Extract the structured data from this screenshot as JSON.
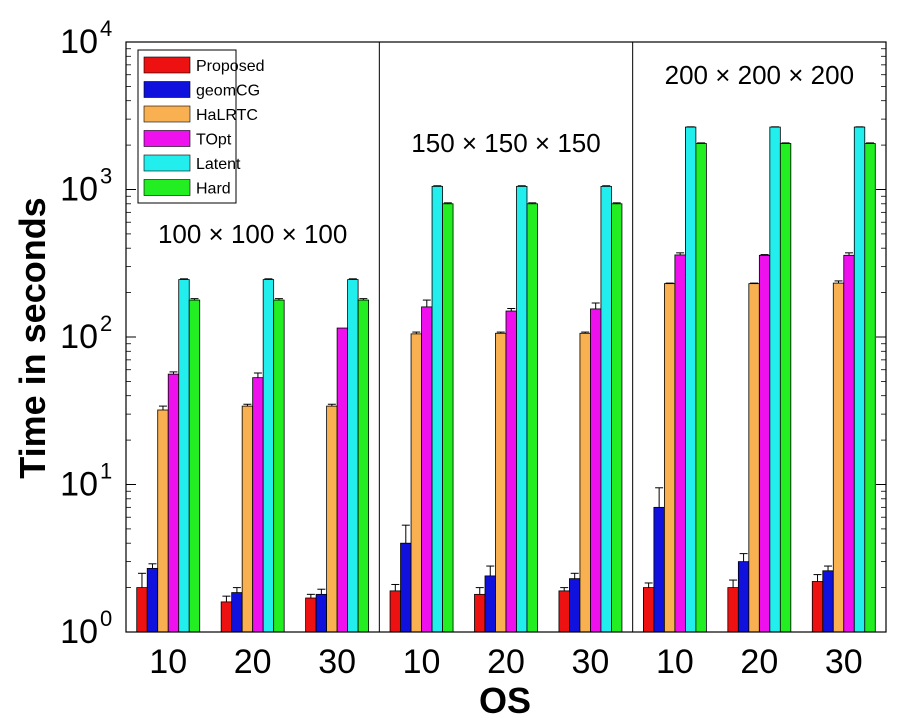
{
  "chart_data": {
    "type": "bar",
    "yscale": "log",
    "ylim": [
      1,
      10000
    ],
    "ylabel": "Time in seconds",
    "xlabel": "OS",
    "y_ticks": [
      {
        "base": "10",
        "exp": "0"
      },
      {
        "base": "10",
        "exp": "1"
      },
      {
        "base": "10",
        "exp": "2"
      },
      {
        "base": "10",
        "exp": "3"
      },
      {
        "base": "10",
        "exp": "4"
      }
    ],
    "legend": {
      "position": "top-left"
    },
    "groups": [
      {
        "label": "100 × 100 × 100",
        "categories": [
          "10",
          "20",
          "30"
        ]
      },
      {
        "label": "150 × 150 × 150",
        "categories": [
          "10",
          "20",
          "30"
        ]
      },
      {
        "label": "200 × 200 × 200",
        "categories": [
          "10",
          "20",
          "30"
        ]
      }
    ],
    "series": [
      {
        "name": "Proposed",
        "color": "#ee1111",
        "values": [
          2.0,
          1.6,
          1.7,
          1.9,
          1.8,
          1.9,
          2.0,
          2.0,
          2.2
        ],
        "err": [
          2.5,
          1.75,
          1.8,
          2.1,
          2.0,
          2.0,
          2.15,
          2.25,
          2.45
        ]
      },
      {
        "name": "geomCG",
        "color": "#1111dd",
        "values": [
          2.7,
          1.85,
          1.8,
          4.0,
          2.4,
          2.3,
          7.0,
          3.0,
          2.6
        ],
        "err": [
          2.9,
          2.0,
          1.95,
          5.3,
          2.8,
          2.5,
          9.5,
          3.4,
          2.8
        ]
      },
      {
        "name": "HaLRTC",
        "color": "#f8b050",
        "values": [
          32,
          34,
          34,
          105,
          106,
          106,
          230,
          230,
          232
        ],
        "err": [
          34,
          35,
          35,
          108,
          108,
          108,
          232,
          232,
          240
        ]
      },
      {
        "name": "TOpt",
        "color": "#ee11ee",
        "values": [
          56,
          53,
          115,
          160,
          150,
          155,
          360,
          358,
          358
        ],
        "err": [
          58,
          57,
          115,
          178,
          156,
          170,
          372,
          362,
          372
        ]
      },
      {
        "name": "Latent",
        "color": "#22eeee",
        "values": [
          245,
          245,
          245,
          1050,
          1050,
          1050,
          2650,
          2650,
          2650
        ],
        "err": [
          248,
          248,
          248,
          1060,
          1060,
          1060,
          2660,
          2660,
          2660
        ]
      },
      {
        "name": "Hard",
        "color": "#22ee22",
        "values": [
          178,
          178,
          178,
          800,
          800,
          800,
          2050,
          2050,
          2050
        ],
        "err": [
          182,
          182,
          182,
          812,
          812,
          812,
          2070,
          2070,
          2070
        ]
      }
    ]
  }
}
